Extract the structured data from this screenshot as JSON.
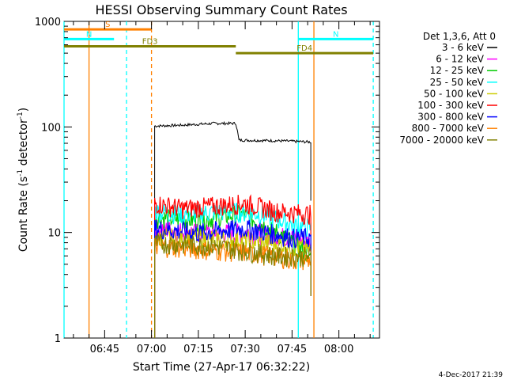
{
  "chart_data": {
    "type": "line",
    "title": "HESSI Observing Summary Count Rates",
    "xlabel": "Start Time (27-Apr-17 06:32:22)",
    "ylabel_parts": [
      "Count Rate (s",
      "-1",
      " detector",
      "-1",
      ")"
    ],
    "y_scale": "log",
    "ylim": [
      1,
      1000
    ],
    "y_ticks": [
      {
        "value": 1,
        "label": "1"
      },
      {
        "value": 10,
        "label": "10"
      },
      {
        "value": 100,
        "label": "100"
      },
      {
        "value": 1000,
        "label": "1000"
      }
    ],
    "x_range_minutes": [
      "06:32",
      "08:13"
    ],
    "x_ticks": [
      {
        "t": "06:45",
        "label": "06:45"
      },
      {
        "t": "07:00",
        "label": "07:00"
      },
      {
        "t": "07:15",
        "label": "07:15"
      },
      {
        "t": "07:30",
        "label": "07:30"
      },
      {
        "t": "07:45",
        "label": "07:45"
      },
      {
        "t": "08:00",
        "label": "08:00"
      }
    ],
    "legend_title": "Det 1,3,6, Att 0",
    "legend_position": "right",
    "series": [
      {
        "name": "3 - 6 keV",
        "color": "#000000",
        "start": "07:01",
        "end": "07:51",
        "values": [
          [
            "07:01",
            102
          ],
          [
            "07:10",
            104
          ],
          [
            "07:20",
            108
          ],
          [
            "07:27",
            108
          ],
          [
            "07:28",
            75
          ],
          [
            "07:40",
            74
          ],
          [
            "07:51",
            72
          ]
        ]
      },
      {
        "name": "6 - 12 keV",
        "color": "#ff00ff",
        "start": "07:01",
        "end": "07:51",
        "values": [
          [
            "07:01",
            11
          ],
          [
            "07:15",
            10
          ],
          [
            "07:30",
            10
          ],
          [
            "07:45",
            9
          ],
          [
            "07:51",
            8
          ]
        ]
      },
      {
        "name": "12 - 25 keV",
        "color": "#00cc00",
        "start": "07:01",
        "end": "07:51",
        "values": [
          [
            "07:01",
            14
          ],
          [
            "07:15",
            13
          ],
          [
            "07:28",
            15
          ],
          [
            "07:38",
            11
          ],
          [
            "07:45",
            8
          ],
          [
            "07:51",
            6
          ]
        ]
      },
      {
        "name": "25 - 50 keV",
        "color": "#00ffff",
        "start": "07:01",
        "end": "07:51",
        "values": [
          [
            "07:01",
            16
          ],
          [
            "07:10",
            15
          ],
          [
            "07:25",
            16
          ],
          [
            "07:35",
            15
          ],
          [
            "07:45",
            12
          ],
          [
            "07:51",
            11
          ]
        ]
      },
      {
        "name": "50 - 100 keV",
        "color": "#cccc00",
        "start": "07:01",
        "end": "07:51",
        "values": [
          [
            "07:01",
            9
          ],
          [
            "07:15",
            9
          ],
          [
            "07:30",
            8.5
          ],
          [
            "07:45",
            7.5
          ],
          [
            "07:51",
            7
          ]
        ]
      },
      {
        "name": "100 - 300 keV",
        "color": "#ff0000",
        "start": "07:01",
        "end": "07:51",
        "values": [
          [
            "07:01",
            19
          ],
          [
            "07:10",
            17
          ],
          [
            "07:20",
            18
          ],
          [
            "07:30",
            19
          ],
          [
            "07:40",
            16
          ],
          [
            "07:51",
            15
          ]
        ]
      },
      {
        "name": "300 - 800 keV",
        "color": "#0000ff",
        "start": "07:01",
        "end": "07:51",
        "values": [
          [
            "07:01",
            11
          ],
          [
            "07:15",
            10
          ],
          [
            "07:30",
            11
          ],
          [
            "07:45",
            9
          ],
          [
            "07:51",
            9
          ]
        ]
      },
      {
        "name": "800 - 7000 keV",
        "color": "#ff8000",
        "start": "07:01",
        "end": "07:51",
        "values": [
          [
            "07:01",
            7.5
          ],
          [
            "07:15",
            7
          ],
          [
            "07:30",
            6.5
          ],
          [
            "07:40",
            6
          ],
          [
            "07:45",
            5.5
          ],
          [
            "07:51",
            5.5
          ]
        ]
      },
      {
        "name": "7000 - 20000 keV",
        "color": "#808000",
        "start": "07:01",
        "end": "07:51",
        "values": [
          [
            "07:01",
            8
          ],
          [
            "07:20",
            7.5
          ],
          [
            "07:40",
            6
          ],
          [
            "07:51",
            6
          ]
        ]
      }
    ],
    "flag_bars": [
      {
        "label": "S",
        "color": "#ff8000",
        "start": "06:32",
        "end": "07:00",
        "level": 840
      },
      {
        "label": "N",
        "color": "#00ffff",
        "start": "06:32",
        "end": "06:48",
        "level": 680
      },
      {
        "label": "N",
        "color": "#00ffff",
        "start": "07:47",
        "end": "08:11",
        "level": 680
      },
      {
        "label": "FD3",
        "color": "#808000",
        "start": "06:32",
        "end": "07:27",
        "level": 580
      },
      {
        "label": "FD4",
        "color": "#808000",
        "start": "07:27",
        "end": "08:11",
        "level": 500
      }
    ],
    "vertical_markers": [
      {
        "t": "06:32",
        "color": "#00ffff",
        "style": "solid"
      },
      {
        "t": "06:40",
        "color": "#ff8000",
        "style": "solid"
      },
      {
        "t": "06:52",
        "color": "#00ffff",
        "style": "dashed"
      },
      {
        "t": "07:00",
        "color": "#ff8000",
        "style": "dashed"
      },
      {
        "t": "07:47",
        "color": "#00ffff",
        "style": "solid"
      },
      {
        "t": "07:52",
        "color": "#ff8000",
        "style": "solid"
      },
      {
        "t": "08:11",
        "color": "#00ffff",
        "style": "dashed"
      }
    ],
    "grid": false
  },
  "footer_date": "4-Dec-2017 21:39"
}
